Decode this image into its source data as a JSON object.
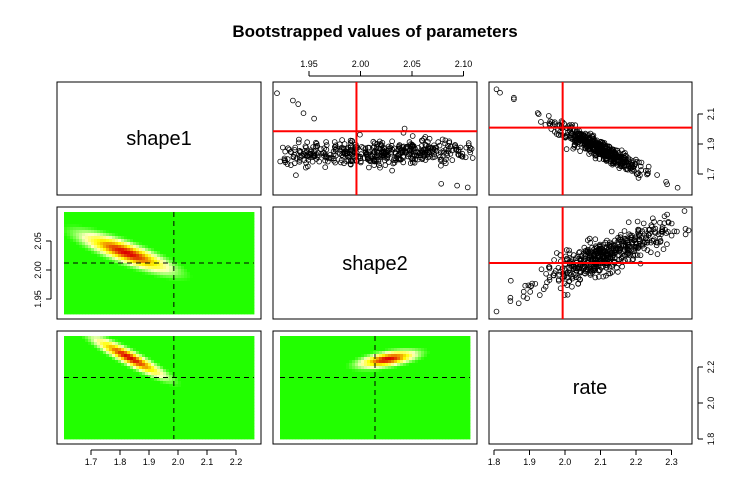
{
  "chart_data": {
    "type": "scatter",
    "title": "Bootstrapped values of parameters",
    "parameters": [
      "shape1",
      "shape2",
      "rate"
    ],
    "estimates": {
      "shape1": 2.0,
      "shape2": 2.0,
      "rate": 2.0
    },
    "axis_ranges": {
      "shape1": [
        1.63,
        2.27
      ],
      "shape2": [
        1.925,
        2.075
      ],
      "rate": [
        1.63,
        2.25
      ],
      "rate_col": [
        1.8,
        2.36
      ]
    },
    "ticks": {
      "shape1": [
        "1.7",
        "1.8",
        "1.9",
        "2.0",
        "2.1",
        "2.2"
      ],
      "shape2": [
        "1.95",
        "2.00",
        "2.05",
        "2.10"
      ],
      "shape2_left": [
        "1.95",
        "2.00",
        "2.05"
      ],
      "rate": [
        "1.8",
        "1.9",
        "2.0",
        "2.1",
        "2.2",
        "2.3"
      ],
      "rate_right": [
        "1.7",
        "1.9",
        "2.1"
      ],
      "rate_right_bottom": [
        "1.8",
        "2.0",
        "2.2"
      ]
    },
    "panels": {
      "shape2_vs_shape1": {
        "x_param": "shape2",
        "y_param": "shape1",
        "x_range": [
          1.925,
          2.11
        ],
        "y_range": [
          1.67,
          2.25
        ],
        "center": [
          2.02,
          1.88
        ],
        "slope": -3.3,
        "spread_along": 0.035,
        "spread_perp": 0.055,
        "points": [
          [
            1.925,
            2.21
          ],
          [
            1.94,
            2.17
          ],
          [
            1.945,
            2.15
          ],
          [
            1.95,
            2.1
          ],
          [
            1.96,
            2.07
          ],
          [
            2.08,
            1.71
          ],
          [
            2.095,
            1.7
          ],
          [
            2.105,
            1.69
          ]
        ],
        "n": 520
      },
      "rate_vs_shape1": {
        "x_param": "rate",
        "y_param": "shape1",
        "x_range": [
          1.8,
          2.36
        ],
        "y_range": [
          1.62,
          2.25
        ],
        "center": [
          2.1,
          1.88
        ],
        "slope": -1.15,
        "spread_along": 0.09,
        "spread_perp": 0.018,
        "points": [
          [
            1.81,
            2.23
          ],
          [
            1.82,
            2.21
          ],
          [
            1.86,
            2.18
          ],
          [
            1.86,
            2.17
          ],
          [
            2.3,
            1.66
          ],
          [
            2.33,
            1.64
          ]
        ],
        "n": 520
      },
      "rate_vs_shape2": {
        "x_param": "rate",
        "y_param": "shape2",
        "x_range": [
          1.8,
          2.36
        ],
        "y_range": [
          1.925,
          2.075
        ],
        "center": [
          2.12,
          2.01
        ],
        "slope": 0.19,
        "spread_along": 0.09,
        "spread_perp": 0.012,
        "points": [
          [
            1.81,
            1.93
          ],
          [
            1.85,
            1.945
          ],
          [
            1.85,
            1.95
          ],
          [
            2.3,
            2.07
          ],
          [
            2.35,
            2.075
          ]
        ],
        "n": 520
      },
      "shape1_vs_shape2_density": {
        "x_param": "shape1",
        "y_param": "shape2",
        "center": [
          1.84,
          2.015
        ],
        "slope": -0.16,
        "spread_along": 0.1,
        "spread_perp": 0.01
      },
      "shape1_vs_rate_density": {
        "x_param": "shape1",
        "y_param": "rate",
        "center": [
          1.85,
          2.12
        ],
        "slope": -1.0,
        "spread_along": 0.11,
        "spread_perp": 0.022
      },
      "shape2_vs_rate_density": {
        "x_param": "shape2",
        "y_param": "rate",
        "center": [
          2.01,
          2.11
        ],
        "slope": 3.6,
        "spread_along": 0.035,
        "spread_perp": 0.012
      }
    },
    "colors": {
      "estimate_lines": "#ff0000",
      "density_low": "#22ff00",
      "density_mid": "#ffff00",
      "density_high": "#dd0000",
      "points": "#000000"
    },
    "grid": false,
    "legend": "none"
  }
}
